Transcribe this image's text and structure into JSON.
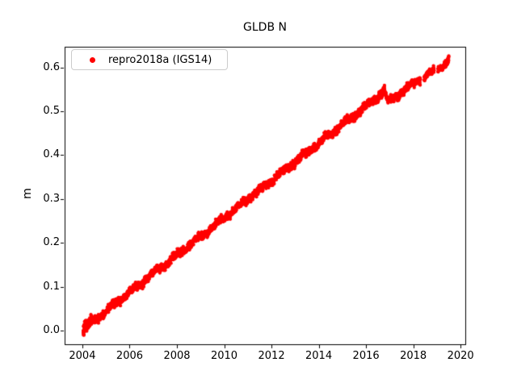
{
  "chart_data": {
    "type": "scatter",
    "title": "GLDB N",
    "xlabel": "",
    "ylabel": "m",
    "legend": {
      "label": "repro2018a (IGS14)",
      "location": "upper left",
      "marker": "red-dot"
    },
    "marker_color": "#ff0000",
    "marker_radius_px": 2.1,
    "xlim": [
      2003.25,
      2020.2
    ],
    "ylim": [
      -0.031,
      0.647
    ],
    "xtick_values": [
      2004,
      2006,
      2008,
      2010,
      2012,
      2014,
      2016,
      2018,
      2020
    ],
    "xtick_labels": [
      "2004",
      "2006",
      "2008",
      "2010",
      "2012",
      "2014",
      "2016",
      "2018",
      "2020"
    ],
    "ytick_values": [
      0.0,
      0.1,
      0.2,
      0.3,
      0.4,
      0.5,
      0.6
    ],
    "ytick_labels": [
      "0.0",
      "0.1",
      "0.2",
      "0.3",
      "0.4",
      "0.5",
      "0.6"
    ],
    "grid": false,
    "series": [
      {
        "name": "repro2018a (IGS14)",
        "color": "#ff0000",
        "key_points": [
          {
            "x": 2004.05,
            "y": 0.0
          },
          {
            "x": 2006.0,
            "y": 0.085
          },
          {
            "x": 2008.0,
            "y": 0.172
          },
          {
            "x": 2010.0,
            "y": 0.257
          },
          {
            "x": 2012.0,
            "y": 0.342
          },
          {
            "x": 2014.0,
            "y": 0.427
          },
          {
            "x": 2016.0,
            "y": 0.512
          },
          {
            "x": 2016.8,
            "y": 0.545
          },
          {
            "x": 2016.9,
            "y": 0.52
          },
          {
            "x": 2018.3,
            "y": 0.575
          },
          {
            "x": 2018.9,
            "y": 0.592
          },
          {
            "x": 2019.5,
            "y": 0.615
          }
        ],
        "segments": [
          {
            "x0": 2004.04,
            "y0": 0.004,
            "x1": 2004.4,
            "y1": 0.019,
            "step": 0.003,
            "noise": 0.006
          },
          {
            "x0": 2004.04,
            "y0": 0.004,
            "x1": 2016.78,
            "y1": 0.545,
            "step": 0.005,
            "noise": 0.0042
          },
          {
            "x0": 2016.55,
            "y0": 0.537,
            "x1": 2016.78,
            "y1": 0.549,
            "step": 0.003,
            "noise": 0.0038
          },
          {
            "x0": 2016.78,
            "y0": 0.545,
            "x1": 2016.92,
            "y1": 0.521,
            "step": 0.004,
            "noise": 0.003
          },
          {
            "x0": 2016.92,
            "y0": 0.521,
            "x1": 2018.3,
            "y1": 0.574,
            "step": 0.005,
            "noise": 0.0038
          },
          {
            "x0": 2018.46,
            "y0": 0.578,
            "x1": 2018.88,
            "y1": 0.592,
            "step": 0.005,
            "noise": 0.0035
          },
          {
            "x0": 2019.04,
            "y0": 0.597,
            "x1": 2019.36,
            "y1": 0.607,
            "step": 0.005,
            "noise": 0.0035
          },
          {
            "x0": 2019.36,
            "y0": 0.607,
            "x1": 2019.5,
            "y1": 0.618,
            "step": 0.003,
            "noise": 0.004
          }
        ],
        "gaps_x": [
          [
            2018.3,
            2018.46
          ],
          [
            2018.88,
            2019.04
          ]
        ],
        "discontinuity": {
          "x": 2016.85,
          "drop_m": 0.025
        }
      }
    ]
  }
}
